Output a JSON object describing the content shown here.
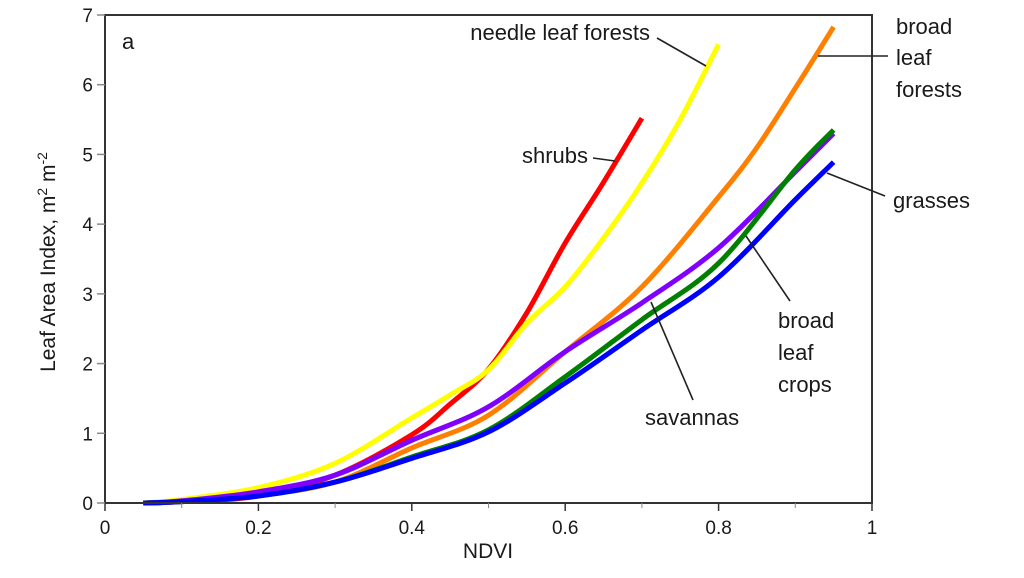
{
  "chart_data": {
    "type": "line",
    "panel_label": "a",
    "title": "",
    "xlabel": "NDVI",
    "ylabel": {
      "base": "Leaf Area Index, m",
      "sup1": "2",
      "mid": " m",
      "sup2": "-2"
    },
    "xlim": [
      0,
      1
    ],
    "ylim": [
      0,
      7
    ],
    "xticks": [
      0,
      0.2,
      0.4,
      0.6,
      0.8,
      1
    ],
    "xtick_labels": [
      "0",
      "0.2",
      "0.4",
      "0.6",
      "0.8",
      "1"
    ],
    "xminor": [
      0.1,
      0.3,
      0.5,
      0.7,
      0.9
    ],
    "yticks": [
      0,
      1,
      2,
      3,
      4,
      5,
      6,
      7
    ],
    "ytick_labels": [
      "0",
      "1",
      "2",
      "3",
      "4",
      "5",
      "6",
      "7"
    ],
    "grid": false,
    "series": [
      {
        "name": "shrubs",
        "color": "#ff0000",
        "x": [
          0.05,
          0.1,
          0.2,
          0.3,
          0.4,
          0.45,
          0.5,
          0.55,
          0.6,
          0.65,
          0.7
        ],
        "y": [
          0,
          0.02,
          0.1,
          0.4,
          0.98,
          1.42,
          1.92,
          2.73,
          3.73,
          4.6,
          5.52
        ]
      },
      {
        "name": "needle leaf forests",
        "color": "#ffff00",
        "x": [
          0.05,
          0.1,
          0.2,
          0.3,
          0.4,
          0.45,
          0.5,
          0.55,
          0.6,
          0.65,
          0.7,
          0.75,
          0.8
        ],
        "y": [
          0,
          0.05,
          0.22,
          0.57,
          1.22,
          1.55,
          1.91,
          2.58,
          3.1,
          3.8,
          4.59,
          5.5,
          6.58
        ]
      },
      {
        "name": "broad leaf forests",
        "color": "#ff8000",
        "x": [
          0.05,
          0.1,
          0.2,
          0.3,
          0.4,
          0.5,
          0.6,
          0.7,
          0.8,
          0.85,
          0.9,
          0.95
        ],
        "y": [
          0,
          0.02,
          0.11,
          0.3,
          0.79,
          1.26,
          2.17,
          3.1,
          4.39,
          5.1,
          5.95,
          6.83
        ]
      },
      {
        "name": "savannas",
        "color": "#8000ff",
        "x": [
          0.05,
          0.1,
          0.2,
          0.3,
          0.4,
          0.5,
          0.6,
          0.7,
          0.8,
          0.9,
          0.95
        ],
        "y": [
          0,
          0.03,
          0.16,
          0.4,
          0.9,
          1.38,
          2.17,
          2.87,
          3.66,
          4.75,
          5.3
        ]
      },
      {
        "name": "broad leaf crops",
        "color": "#008000",
        "x": [
          0.05,
          0.1,
          0.2,
          0.3,
          0.4,
          0.5,
          0.6,
          0.7,
          0.8,
          0.9,
          0.95
        ],
        "y": [
          0,
          0.02,
          0.1,
          0.3,
          0.66,
          1.05,
          1.81,
          2.63,
          3.44,
          4.78,
          5.35
        ]
      },
      {
        "name": "grasses",
        "color": "#0000ff",
        "x": [
          0.05,
          0.1,
          0.2,
          0.3,
          0.4,
          0.5,
          0.6,
          0.7,
          0.8,
          0.9,
          0.95
        ],
        "y": [
          0,
          0.02,
          0.1,
          0.3,
          0.64,
          1.02,
          1.72,
          2.48,
          3.24,
          4.35,
          4.89
        ]
      }
    ],
    "annotations": [
      {
        "series": "needle leaf forests",
        "lines": [
          "needle leaf forests"
        ]
      },
      {
        "series": "broad leaf forests",
        "lines": [
          "broad",
          "leaf",
          "forests"
        ]
      },
      {
        "series": "shrubs",
        "lines": [
          "shrubs"
        ]
      },
      {
        "series": "grasses",
        "lines": [
          "grasses"
        ]
      },
      {
        "series": "broad leaf crops",
        "lines": [
          "broad",
          "leaf",
          "crops"
        ]
      },
      {
        "series": "savannas",
        "lines": [
          "savannas"
        ]
      }
    ]
  }
}
